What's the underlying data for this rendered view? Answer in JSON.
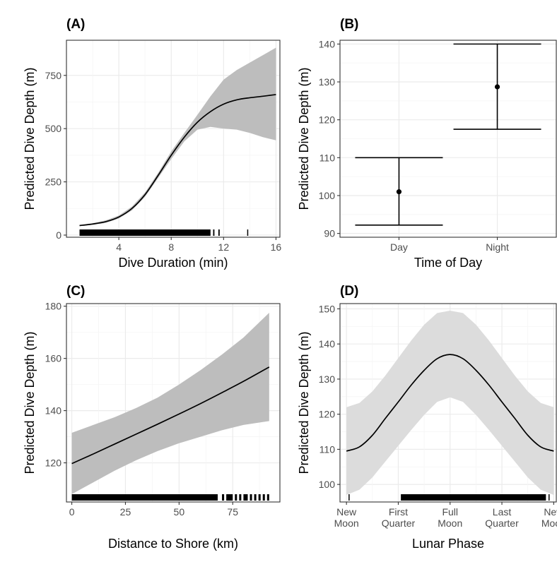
{
  "chart_data": [
    {
      "panel": "(A)",
      "type": "line",
      "xlabel": "Dive Duration (min)",
      "ylabel": "Predicted Dive Depth (m)",
      "xlim": [
        0,
        16.3
      ],
      "ylim": [
        915,
        -10
      ],
      "y_reversed": true,
      "grid": true,
      "x_ticks": [
        4,
        8,
        12,
        16
      ],
      "y_ticks": [
        0,
        250,
        500,
        750
      ],
      "x_tick_labels": [
        "4",
        "8",
        "12",
        "16"
      ],
      "y_tick_labels": [
        "0",
        "250",
        "500",
        "750"
      ],
      "line": {
        "x": [
          1,
          2,
          3,
          4,
          5,
          6,
          7,
          8,
          9,
          10,
          11,
          12,
          13,
          14,
          15,
          16
        ],
        "y": [
          45,
          52,
          63,
          85,
          125,
          190,
          280,
          375,
          460,
          530,
          580,
          615,
          635,
          645,
          652,
          660
        ]
      },
      "band": {
        "x": [
          1,
          2,
          3,
          4,
          5,
          6,
          7,
          8,
          9,
          10,
          11,
          12,
          13,
          14,
          15,
          16
        ],
        "lower": [
          42,
          48,
          57,
          78,
          116,
          180,
          268,
          357,
          440,
          495,
          508,
          500,
          495,
          480,
          460,
          445
        ],
        "upper": [
          48,
          56,
          69,
          92,
          134,
          200,
          292,
          393,
          480,
          565,
          652,
          730,
          775,
          810,
          845,
          880
        ]
      },
      "rug": [
        [
          1,
          11
        ],
        [
          11.2,
          11.3
        ],
        [
          11.6,
          11.7
        ],
        [
          13.8,
          13.85
        ]
      ]
    },
    {
      "panel": "(B)",
      "type": "errorbar",
      "xlabel": "Time of Day",
      "ylabel": "Predicted Dive Depth (m)",
      "categories": [
        "Day",
        "Night"
      ],
      "ylim": [
        141,
        89
      ],
      "y_reversed": true,
      "grid": true,
      "y_ticks": [
        90,
        100,
        110,
        120,
        130,
        140
      ],
      "y_tick_labels": [
        "90",
        "100",
        "110",
        "120",
        "130",
        "140"
      ],
      "values": [
        101,
        128.7
      ],
      "lower": [
        92.2,
        117.5
      ],
      "upper": [
        110,
        140
      ]
    },
    {
      "panel": "(C)",
      "type": "line",
      "xlabel": "Distance to Shore (km)",
      "ylabel": "Predicted Dive Depth (m)",
      "xlim": [
        -2.5,
        97
      ],
      "ylim": [
        181,
        105
      ],
      "y_reversed": true,
      "grid": true,
      "x_ticks": [
        0,
        25,
        50,
        75
      ],
      "y_ticks": [
        120,
        140,
        160,
        180
      ],
      "x_tick_labels": [
        "0",
        "25",
        "50",
        "75"
      ],
      "y_tick_labels": [
        "120",
        "140",
        "160",
        "180"
      ],
      "line": {
        "x": [
          0,
          10,
          20,
          30,
          40,
          50,
          60,
          70,
          80,
          92
        ],
        "y": [
          119.7,
          123.4,
          127.2,
          131.0,
          134.8,
          138.7,
          142.7,
          146.9,
          151.2,
          156.7
        ]
      },
      "band": {
        "x": [
          0,
          10,
          20,
          30,
          40,
          50,
          60,
          70,
          80,
          92
        ],
        "lower": [
          108.0,
          112.5,
          117.0,
          121.0,
          124.5,
          127.5,
          130.0,
          132.5,
          134.5,
          136.0
        ],
        "upper": [
          131.5,
          134.5,
          137.5,
          141.0,
          145.0,
          150.0,
          155.5,
          161.5,
          168.0,
          177.5
        ]
      },
      "rug": [
        [
          0,
          68
        ],
        [
          70,
          71
        ],
        [
          72,
          75
        ],
        [
          76,
          77
        ],
        [
          78,
          79
        ],
        [
          80,
          82
        ],
        [
          83,
          84
        ],
        [
          85,
          86
        ],
        [
          87,
          88
        ],
        [
          89,
          90
        ],
        [
          91,
          92
        ]
      ]
    },
    {
      "panel": "(D)",
      "type": "line",
      "xlabel": "Lunar Phase",
      "ylabel": "Predicted Dive Depth (m)",
      "xlim": [
        -0.125,
        4.05
      ],
      "ylim": [
        151.5,
        95
      ],
      "y_reversed": true,
      "grid": true,
      "x_ticks": [
        0,
        1,
        2,
        3,
        4
      ],
      "y_ticks": [
        100,
        110,
        120,
        130,
        140,
        150
      ],
      "x_tick_labels": [
        [
          "New",
          "Moon"
        ],
        [
          "First",
          "Quarter"
        ],
        [
          "Full",
          "Moon"
        ],
        [
          "Last",
          "Quarter"
        ],
        [
          "New",
          "Moon"
        ]
      ],
      "y_tick_labels": [
        "100",
        "110",
        "120",
        "130",
        "140",
        "150"
      ],
      "line": {
        "x": [
          0,
          0.25,
          0.5,
          0.75,
          1,
          1.25,
          1.5,
          1.75,
          2,
          2.25,
          2.5,
          2.75,
          3,
          3.25,
          3.5,
          3.75,
          4
        ],
        "y": [
          109.5,
          110.7,
          114.0,
          118.8,
          123.5,
          128.3,
          132.5,
          135.8,
          137.0,
          135.8,
          132.5,
          128.3,
          123.5,
          118.8,
          114.0,
          110.7,
          109.5
        ]
      },
      "band": {
        "x": [
          0,
          0.25,
          0.5,
          0.75,
          1,
          1.25,
          1.5,
          1.75,
          2,
          2.25,
          2.5,
          2.75,
          3,
          3.25,
          3.5,
          3.75,
          4
        ],
        "lower": [
          97.0,
          98.5,
          102.0,
          106.5,
          111.0,
          115.5,
          119.8,
          123.5,
          124.8,
          123.5,
          119.8,
          115.5,
          111.0,
          106.5,
          102.0,
          98.5,
          97.0
        ],
        "upper": [
          122.0,
          123.2,
          126.5,
          131.0,
          136.0,
          141.0,
          145.5,
          148.8,
          149.5,
          148.8,
          145.5,
          141.0,
          136.0,
          131.0,
          126.5,
          123.2,
          122.0
        ]
      },
      "rug": [
        [
          0.04,
          0.06
        ],
        [
          1.05,
          3.85
        ],
        [
          3.9,
          3.92
        ]
      ]
    }
  ],
  "colors": {
    "line": "#000000",
    "band_dark": "#bdbdbd",
    "band_light": "#dcdcdc",
    "grid_major": "#ebebeb",
    "grid_minor": "#f5f5f5",
    "axis_text": "#4d4d4d",
    "panel_border": "#333333"
  }
}
